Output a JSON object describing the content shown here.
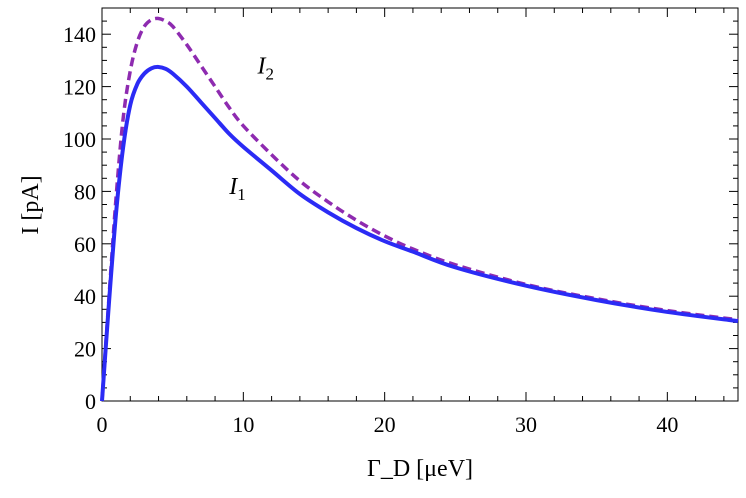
{
  "chart_data": {
    "type": "line",
    "title": "",
    "xlabel": "Γ_D [μeV]",
    "ylabel": "I [pA]",
    "xlim": [
      0,
      45
    ],
    "ylim": [
      0,
      150
    ],
    "x_ticks": [
      0,
      10,
      20,
      30,
      40
    ],
    "y_ticks": [
      0,
      20,
      40,
      60,
      80,
      100,
      120,
      140
    ],
    "x_tick_labels": [
      "0",
      "10",
      "20",
      "30",
      "40"
    ],
    "y_tick_labels": [
      "0",
      "20",
      "40",
      "60",
      "80",
      "100",
      "120",
      "140"
    ],
    "grid": false,
    "series": [
      {
        "name": "I1",
        "label_main": "I",
        "label_sub": "1",
        "color": "#2b2bf5",
        "style": "solid",
        "x": [
          0,
          0.5,
          1,
          1.5,
          2,
          2.5,
          3,
          3.5,
          4,
          4.5,
          5,
          6,
          7,
          8,
          9,
          10,
          12,
          14,
          16,
          18,
          20,
          22,
          25,
          30,
          35,
          40,
          45
        ],
        "y": [
          0,
          38,
          72,
          97,
          113,
          121,
          125,
          127,
          127.5,
          126.8,
          125,
          120,
          114,
          108,
          102,
          97,
          88,
          79,
          72,
          66,
          61,
          57,
          51,
          44,
          38.5,
          34,
          30.5
        ]
      },
      {
        "name": "I2",
        "label_main": "I",
        "label_sub": "2",
        "color": "#8e2bb0",
        "style": "dashed",
        "x": [
          0,
          0.5,
          1,
          1.5,
          2,
          2.5,
          3,
          3.5,
          4,
          4.5,
          5,
          6,
          7,
          8,
          9,
          10,
          12,
          14,
          16,
          18,
          20,
          22,
          25,
          30,
          35,
          40,
          45
        ],
        "y": [
          0,
          40,
          78,
          108,
          126,
          137,
          143,
          145.5,
          146,
          145,
          143,
          136,
          128,
          120,
          112,
          105,
          94,
          84,
          76,
          69,
          63,
          58,
          52,
          44.5,
          39,
          34.5,
          31
        ]
      }
    ],
    "annotations": [
      {
        "series": "I1",
        "x": 9.0,
        "y": 79
      },
      {
        "series": "I2",
        "x": 11.0,
        "y": 125
      }
    ]
  }
}
